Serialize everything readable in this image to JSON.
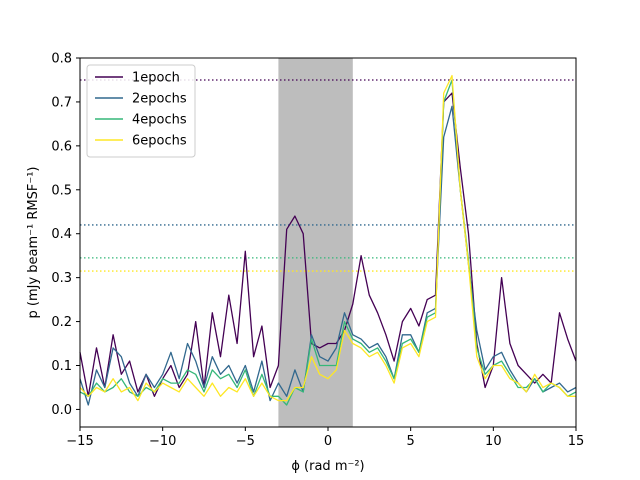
{
  "chart_data": {
    "type": "line",
    "xlabel": "ϕ (rad m⁻²)",
    "ylabel": "p (mJy beam⁻¹ RMSF⁻¹)",
    "xlim": [
      -15,
      15
    ],
    "ylim": [
      -0.04,
      0.8
    ],
    "xticks": [
      -15,
      -10,
      -5,
      0,
      5,
      10,
      15
    ],
    "yticks": [
      0.0,
      0.1,
      0.2,
      0.3,
      0.4,
      0.5,
      0.6,
      0.7,
      0.8
    ],
    "xtick_labels": [
      "−15",
      "−10",
      "−5",
      "0",
      "5",
      "10",
      "15"
    ],
    "ytick_labels": [
      "0.0",
      "0.1",
      "0.2",
      "0.3",
      "0.4",
      "0.5",
      "0.6",
      "0.7",
      "0.8"
    ],
    "shaded_region": {
      "x_start": -3.0,
      "x_end": 1.5,
      "color": "#bdbdbd"
    },
    "legend_position": "upper-left",
    "grid": false,
    "x": [
      -15,
      -14.5,
      -14,
      -13.5,
      -13,
      -12.5,
      -12,
      -11.5,
      -11,
      -10.5,
      -10,
      -9.5,
      -9,
      -8.5,
      -8,
      -7.5,
      -7,
      -6.5,
      -6,
      -5.5,
      -5,
      -4.5,
      -4,
      -3.5,
      -3,
      -2.5,
      -2,
      -1.5,
      -1,
      -0.5,
      0,
      0.5,
      1,
      1.5,
      2,
      2.5,
      3,
      3.5,
      4,
      4.5,
      5,
      5.5,
      6,
      6.5,
      7,
      7.5,
      8,
      8.5,
      9,
      9.5,
      10,
      10.5,
      11,
      11.5,
      12,
      12.5,
      13,
      13.5,
      14,
      14.5,
      15
    ],
    "series": [
      {
        "name": "1epoch",
        "color": "#440154",
        "threshold": 0.75,
        "values": [
          0.13,
          0.03,
          0.14,
          0.05,
          0.17,
          0.08,
          0.11,
          0.04,
          0.08,
          0.03,
          0.07,
          0.1,
          0.05,
          0.08,
          0.2,
          0.05,
          0.22,
          0.12,
          0.26,
          0.15,
          0.36,
          0.12,
          0.19,
          0.05,
          0.1,
          0.41,
          0.44,
          0.4,
          0.15,
          0.14,
          0.15,
          0.15,
          0.18,
          0.24,
          0.35,
          0.26,
          0.22,
          0.17,
          0.11,
          0.2,
          0.23,
          0.19,
          0.25,
          0.26,
          0.7,
          0.72,
          0.55,
          0.4,
          0.15,
          0.05,
          0.1,
          0.3,
          0.15,
          0.1,
          0.08,
          0.06,
          0.08,
          0.06,
          0.22,
          0.16,
          0.11
        ]
      },
      {
        "name": "2epochs",
        "color": "#31688e",
        "threshold": 0.42,
        "values": [
          0.07,
          0.01,
          0.09,
          0.05,
          0.14,
          0.12,
          0.06,
          0.03,
          0.08,
          0.05,
          0.08,
          0.13,
          0.07,
          0.15,
          0.11,
          0.05,
          0.12,
          0.08,
          0.1,
          0.06,
          0.1,
          0.04,
          0.11,
          0.02,
          0.06,
          0.03,
          0.09,
          0.04,
          0.17,
          0.12,
          0.11,
          0.14,
          0.22,
          0.17,
          0.16,
          0.14,
          0.15,
          0.12,
          0.07,
          0.17,
          0.17,
          0.13,
          0.22,
          0.23,
          0.62,
          0.69,
          0.5,
          0.33,
          0.18,
          0.09,
          0.12,
          0.13,
          0.09,
          0.06,
          0.04,
          0.07,
          0.04,
          0.05,
          0.06,
          0.04,
          0.05
        ]
      },
      {
        "name": "4epochs",
        "color": "#35b779",
        "threshold": 0.345,
        "values": [
          0.04,
          0.03,
          0.06,
          0.04,
          0.05,
          0.07,
          0.04,
          0.03,
          0.05,
          0.04,
          0.07,
          0.06,
          0.06,
          0.09,
          0.08,
          0.04,
          0.09,
          0.07,
          0.08,
          0.05,
          0.09,
          0.03,
          0.08,
          0.03,
          0.03,
          0.01,
          0.05,
          0.04,
          0.16,
          0.1,
          0.1,
          0.1,
          0.2,
          0.16,
          0.15,
          0.13,
          0.14,
          0.11,
          0.07,
          0.15,
          0.16,
          0.13,
          0.21,
          0.22,
          0.7,
          0.75,
          0.5,
          0.34,
          0.14,
          0.08,
          0.1,
          0.11,
          0.08,
          0.05,
          0.05,
          0.07,
          0.04,
          0.06,
          0.05,
          0.03,
          0.04
        ]
      },
      {
        "name": "6epochs",
        "color": "#fde725",
        "threshold": 0.315,
        "values": [
          0.05,
          0.03,
          0.05,
          0.04,
          0.07,
          0.04,
          0.05,
          0.02,
          0.06,
          0.04,
          0.06,
          0.05,
          0.04,
          0.07,
          0.05,
          0.03,
          0.06,
          0.03,
          0.05,
          0.04,
          0.07,
          0.03,
          0.06,
          0.03,
          0.02,
          0.02,
          0.05,
          0.05,
          0.12,
          0.08,
          0.07,
          0.09,
          0.18,
          0.15,
          0.14,
          0.12,
          0.13,
          0.1,
          0.06,
          0.14,
          0.15,
          0.12,
          0.2,
          0.21,
          0.72,
          0.76,
          0.5,
          0.33,
          0.12,
          0.07,
          0.1,
          0.1,
          0.07,
          0.06,
          0.04,
          0.08,
          0.05,
          0.06,
          0.05,
          0.03,
          0.03
        ]
      }
    ]
  }
}
